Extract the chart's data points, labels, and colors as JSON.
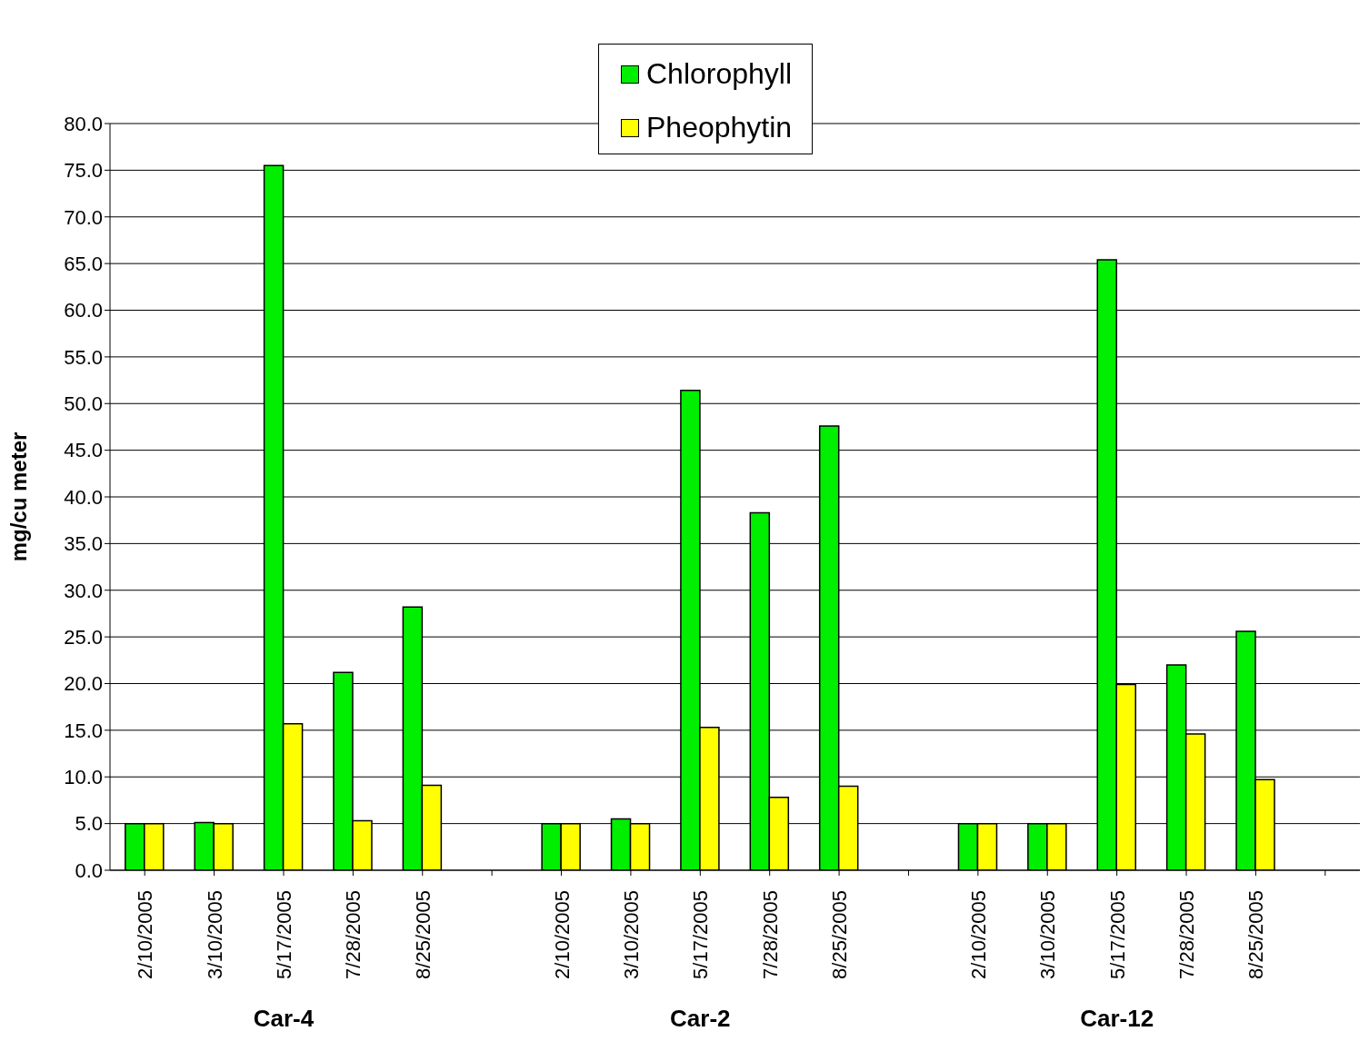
{
  "chart_data": {
    "type": "bar",
    "ylabel": "mg/cu meter",
    "categories": [
      "2/10/2005",
      "3/10/2005",
      "5/17/2005",
      "7/28/2005",
      "8/25/2005",
      null,
      "2/10/2005",
      "3/10/2005",
      "5/17/2005",
      "7/28/2005",
      "8/25/2005",
      null,
      "2/10/2005",
      "3/10/2005",
      "5/17/2005",
      "7/28/2005",
      "8/25/2005",
      null
    ],
    "series": [
      {
        "name": "Chlorophyll",
        "color": "#00ee00",
        "values": [
          5.0,
          5.1,
          75.5,
          21.2,
          28.2,
          null,
          5.0,
          5.5,
          51.4,
          38.3,
          47.6,
          null,
          5.0,
          5.0,
          65.4,
          22.0,
          25.6,
          null
        ]
      },
      {
        "name": "Pheophytin",
        "color": "#ffff00",
        "values": [
          5.0,
          5.0,
          15.7,
          5.3,
          9.1,
          null,
          5.0,
          5.0,
          15.3,
          7.8,
          9.0,
          null,
          5.0,
          5.0,
          19.9,
          14.6,
          9.7,
          null
        ]
      }
    ],
    "ylim": [
      0,
      80
    ],
    "yticks": [
      {
        "value": 0,
        "label": "0.0"
      },
      {
        "value": 5,
        "label": "5.0"
      },
      {
        "value": 10,
        "label": "10.0"
      },
      {
        "value": 15,
        "label": "15.0"
      },
      {
        "value": 20,
        "label": "20.0"
      },
      {
        "value": 25,
        "label": "25.0"
      },
      {
        "value": 30,
        "label": "30.0"
      },
      {
        "value": 35,
        "label": "35.0"
      },
      {
        "value": 40,
        "label": "40.0"
      },
      {
        "value": 45,
        "label": "45.0"
      },
      {
        "value": 50,
        "label": "50.0"
      },
      {
        "value": 55,
        "label": "55.0"
      },
      {
        "value": 60,
        "label": "60.0"
      },
      {
        "value": 65,
        "label": "65.0"
      },
      {
        "value": 70,
        "label": "70.0"
      },
      {
        "value": 75,
        "label": "75.0"
      },
      {
        "value": 80,
        "label": "80.0"
      }
    ],
    "grid": "y",
    "legend": "top",
    "annotations": [
      "Car-4",
      "Car-2",
      "Car-12"
    ]
  }
}
